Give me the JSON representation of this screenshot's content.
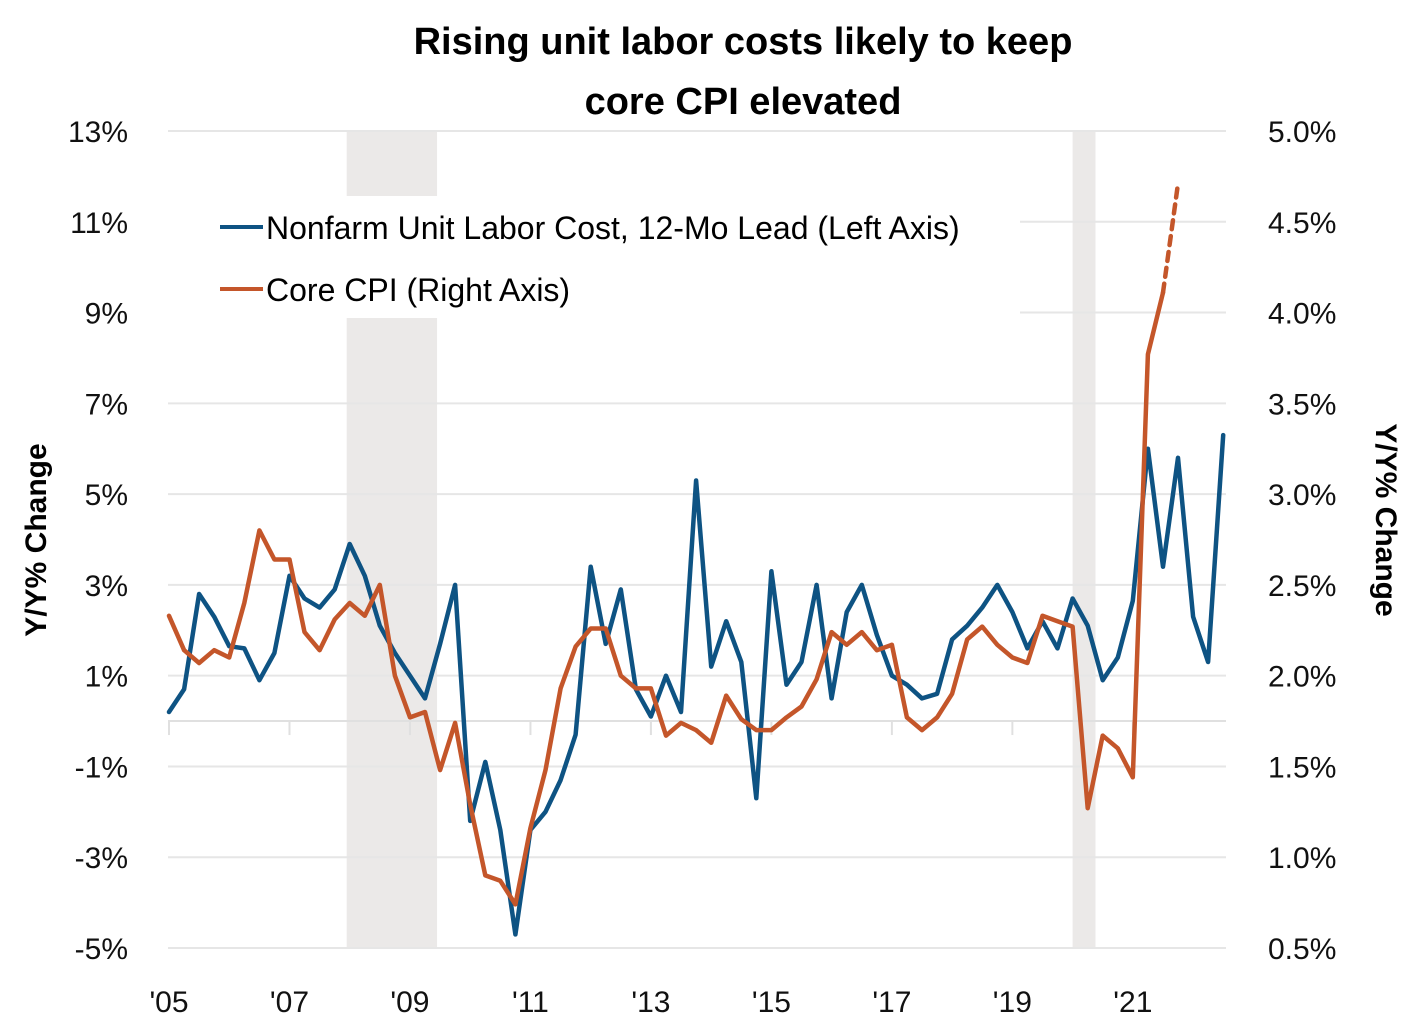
{
  "chart_data": {
    "type": "line",
    "title": "Rising unit labor costs likely to keep core CPI elevated",
    "title_lines": [
      "Rising unit labor costs likely to keep",
      "core CPI elevated"
    ],
    "xlabel": "",
    "ylabel_left": "Y/Y% Change",
    "ylabel_right": "Y/Y% Change",
    "x_start": "2005 Q1",
    "x_frequency": "quarterly",
    "x_tick_labels": [
      "'05",
      "'07",
      "'09",
      "'11",
      "'13",
      "'15",
      "'17",
      "'19",
      "'21"
    ],
    "x_tick_years": [
      2005,
      2007,
      2009,
      2011,
      2013,
      2015,
      2017,
      2019,
      2021
    ],
    "x_range": [
      2005.0,
      2022.6
    ],
    "y_left": {
      "range": [
        -5,
        13
      ],
      "ticks": [
        13,
        11,
        9,
        7,
        5,
        3,
        1,
        -1,
        -3,
        -5
      ],
      "tick_labels": [
        "13%",
        "11%",
        "9%",
        "7%",
        "5%",
        "3%",
        "1%",
        "-1%",
        "-3%",
        "-5%"
      ]
    },
    "y_right": {
      "range": [
        0.5,
        5.0
      ],
      "ticks": [
        5.0,
        4.5,
        4.0,
        3.5,
        3.0,
        2.5,
        2.0,
        1.5,
        1.0,
        0.5
      ],
      "tick_labels": [
        "5.0%",
        "4.5%",
        "4.0%",
        "3.5%",
        "3.0%",
        "2.5%",
        "2.0%",
        "1.5%",
        "1.0%",
        "0.5%"
      ]
    },
    "grid": true,
    "legend_position": "top-left",
    "recessions": [
      {
        "label": "2007-2009 recession",
        "start": 2007.95,
        "end": 2009.45
      },
      {
        "label": "2020 recession",
        "start": 2020.0,
        "end": 2020.38
      }
    ],
    "series": [
      {
        "name": "Nonfarm Unit Labor Cost, 12-Mo Lead (Left Axis)",
        "axis": "left",
        "color": "#0e5383",
        "values": [
          0.2,
          0.7,
          2.8,
          2.3,
          1.65,
          1.6,
          0.9,
          1.5,
          3.2,
          2.7,
          2.5,
          2.9,
          3.9,
          3.2,
          2.1,
          1.5,
          1.0,
          0.5,
          1.7,
          3.0,
          -2.2,
          -0.9,
          -2.4,
          -4.7,
          -2.4,
          -2.0,
          -1.3,
          -0.3,
          3.4,
          1.7,
          2.9,
          0.7,
          0.1,
          1.0,
          0.2,
          5.3,
          1.2,
          2.2,
          1.3,
          -1.7,
          3.3,
          0.8,
          1.3,
          3.0,
          0.5,
          2.4,
          3.0,
          1.9,
          1.0,
          0.8,
          0.5,
          0.6,
          1.8,
          2.1,
          2.5,
          3.0,
          2.4,
          1.6,
          2.2,
          1.6,
          2.7,
          2.1,
          0.9,
          1.4,
          2.65,
          6.0,
          3.4,
          5.8,
          2.3,
          1.3,
          6.3
        ]
      },
      {
        "name": "Core CPI (Right Axis)",
        "axis": "right",
        "color": "#c4562a",
        "values": [
          2.33,
          2.14,
          2.07,
          2.14,
          2.1,
          2.4,
          2.8,
          2.64,
          2.64,
          2.24,
          2.14,
          2.31,
          2.4,
          2.33,
          2.5,
          2.0,
          1.77,
          1.8,
          1.48,
          1.74,
          1.29,
          0.9,
          0.87,
          0.74,
          1.16,
          1.48,
          1.93,
          2.16,
          2.26,
          2.26,
          2.0,
          1.93,
          1.93,
          1.67,
          1.74,
          1.7,
          1.63,
          1.89,
          1.76,
          1.7,
          1.7,
          1.77,
          1.83,
          1.98,
          2.24,
          2.17,
          2.24,
          2.14,
          2.17,
          1.77,
          1.7,
          1.77,
          1.9,
          2.2,
          2.27,
          2.17,
          2.1,
          2.07,
          2.33,
          2.3,
          2.27,
          1.27,
          1.67,
          1.6,
          1.44,
          3.77,
          4.11
        ],
        "projection": {
          "style": "dashed",
          "values": [
            4.11,
            4.71
          ]
        }
      }
    ]
  }
}
